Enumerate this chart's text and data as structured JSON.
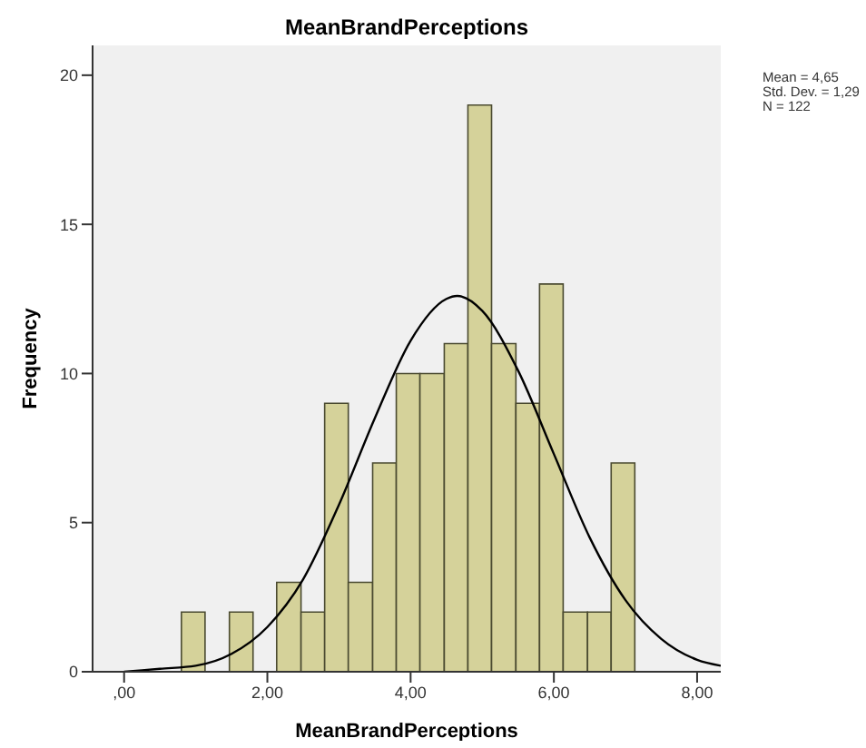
{
  "chart_data": {
    "type": "histogram",
    "title": "MeanBrandPerceptions",
    "xlabel": "MeanBrandPerceptions",
    "ylabel": "Frequency",
    "annotations": [
      "Mean = 4,65",
      "Std. Dev. = 1,29",
      "N = 122"
    ],
    "bins": [
      0.8,
      1.13,
      1.47,
      1.8,
      2.13,
      2.47,
      2.8,
      3.13,
      3.47,
      3.8,
      4.13,
      4.47,
      4.8,
      5.13,
      5.47,
      5.8,
      6.13,
      6.47,
      6.8,
      7.13
    ],
    "values": [
      2,
      0,
      2,
      0,
      3,
      2,
      9,
      3,
      7,
      10,
      10,
      11,
      19,
      11,
      9,
      13,
      2,
      2,
      7
    ],
    "color": "#d5d29a",
    "series": [
      {
        "type": "line",
        "color": "#000000",
        "x": [
          0,
          0.5,
          1,
          1.5,
          2,
          2.5,
          3,
          3.5,
          4,
          4.5,
          4.65,
          5,
          5.5,
          6,
          6.5,
          7,
          7.5,
          8,
          8.33
        ],
        "values": [
          0.0,
          0.1,
          0.2,
          0.6,
          1.5,
          3.1,
          5.6,
          8.5,
          11.1,
          12.5,
          12.6,
          12.1,
          10.1,
          7.3,
          4.5,
          2.4,
          1.1,
          0.4,
          0.2
        ]
      }
    ],
    "xlim": [
      -0.44,
      8.33
    ],
    "ylim": [
      0,
      21
    ],
    "xticks": [
      {
        "value": 0,
        "label": ",00"
      },
      {
        "value": 2,
        "label": "2,00"
      },
      {
        "value": 4,
        "label": "4,00"
      },
      {
        "value": 6,
        "label": "6,00"
      },
      {
        "value": 8,
        "label": "8,00"
      }
    ],
    "yticks": [
      0,
      5,
      10,
      15,
      20
    ],
    "grid": false
  }
}
